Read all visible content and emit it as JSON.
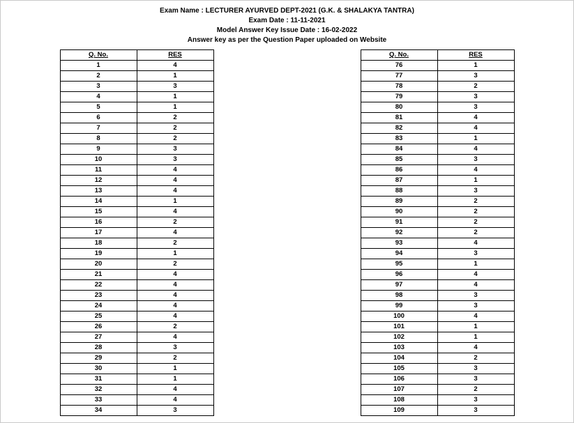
{
  "header": {
    "line1_prefix": "Exam Name : ",
    "line1_exam": "LECTURER AYURVED DEPT-2021 (G.K. & SHALAKYA TANTRA)",
    "line2": "Exam Date : 11-11-2021",
    "line3": "Model Answer Key Issue Date : 16-02-2022",
    "line4": "Answer key as per the Question Paper uploaded on Website"
  },
  "columns": {
    "q": "Q. No.",
    "r": "RES"
  },
  "left": [
    {
      "q": "1",
      "r": "4"
    },
    {
      "q": "2",
      "r": "1"
    },
    {
      "q": "3",
      "r": "3"
    },
    {
      "q": "4",
      "r": "1"
    },
    {
      "q": "5",
      "r": "1"
    },
    {
      "q": "6",
      "r": "2"
    },
    {
      "q": "7",
      "r": "2"
    },
    {
      "q": "8",
      "r": "2"
    },
    {
      "q": "9",
      "r": "3"
    },
    {
      "q": "10",
      "r": "3"
    },
    {
      "q": "11",
      "r": "4"
    },
    {
      "q": "12",
      "r": "4"
    },
    {
      "q": "13",
      "r": "4"
    },
    {
      "q": "14",
      "r": "1"
    },
    {
      "q": "15",
      "r": "4"
    },
    {
      "q": "16",
      "r": "2"
    },
    {
      "q": "17",
      "r": "4"
    },
    {
      "q": "18",
      "r": "2"
    },
    {
      "q": "19",
      "r": "1"
    },
    {
      "q": "20",
      "r": "2"
    },
    {
      "q": "21",
      "r": "4"
    },
    {
      "q": "22",
      "r": "4"
    },
    {
      "q": "23",
      "r": "4"
    },
    {
      "q": "24",
      "r": "4"
    },
    {
      "q": "25",
      "r": "4"
    },
    {
      "q": "26",
      "r": "2"
    },
    {
      "q": "27",
      "r": "4"
    },
    {
      "q": "28",
      "r": "3"
    },
    {
      "q": "29",
      "r": "2"
    },
    {
      "q": "30",
      "r": "1"
    },
    {
      "q": "31",
      "r": "1"
    },
    {
      "q": "32",
      "r": "4"
    },
    {
      "q": "33",
      "r": "4"
    },
    {
      "q": "34",
      "r": "3"
    }
  ],
  "right": [
    {
      "q": "76",
      "r": "1"
    },
    {
      "q": "77",
      "r": "3"
    },
    {
      "q": "78",
      "r": "2"
    },
    {
      "q": "79",
      "r": "3"
    },
    {
      "q": "80",
      "r": "3"
    },
    {
      "q": "81",
      "r": "4"
    },
    {
      "q": "82",
      "r": "4"
    },
    {
      "q": "83",
      "r": "1"
    },
    {
      "q": "84",
      "r": "4"
    },
    {
      "q": "85",
      "r": "3"
    },
    {
      "q": "86",
      "r": "4"
    },
    {
      "q": "87",
      "r": "1"
    },
    {
      "q": "88",
      "r": "3"
    },
    {
      "q": "89",
      "r": "2"
    },
    {
      "q": "90",
      "r": "2"
    },
    {
      "q": "91",
      "r": "2"
    },
    {
      "q": "92",
      "r": "2"
    },
    {
      "q": "93",
      "r": "4"
    },
    {
      "q": "94",
      "r": "3"
    },
    {
      "q": "95",
      "r": "1"
    },
    {
      "q": "96",
      "r": "4"
    },
    {
      "q": "97",
      "r": "4"
    },
    {
      "q": "98",
      "r": "3"
    },
    {
      "q": "99",
      "r": "3"
    },
    {
      "q": "100",
      "r": "4"
    },
    {
      "q": "101",
      "r": "1"
    },
    {
      "q": "102",
      "r": "1"
    },
    {
      "q": "103",
      "r": "4"
    },
    {
      "q": "104",
      "r": "2"
    },
    {
      "q": "105",
      "r": "3"
    },
    {
      "q": "106",
      "r": "3"
    },
    {
      "q": "107",
      "r": "2"
    },
    {
      "q": "108",
      "r": "3"
    },
    {
      "q": "109",
      "r": "3"
    }
  ]
}
